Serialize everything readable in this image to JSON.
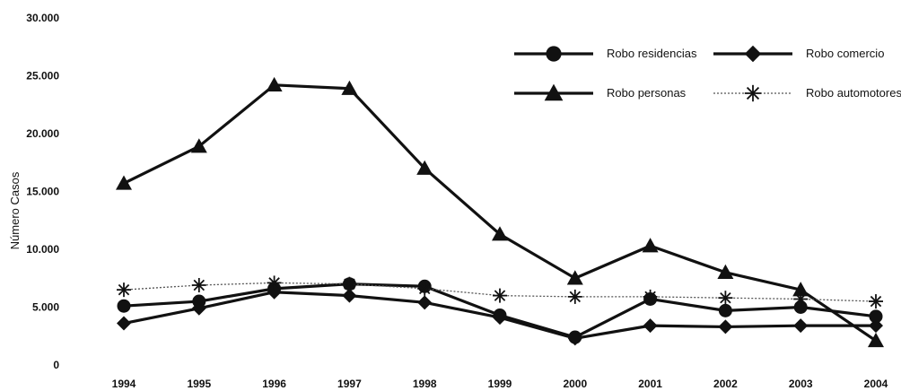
{
  "chart_data": {
    "type": "line",
    "title": "",
    "xlabel": "",
    "ylabel": "Número Casos",
    "ylim": [
      0,
      30000
    ],
    "y_ticks": [
      0,
      5000,
      10000,
      15000,
      20000,
      25000,
      30000
    ],
    "y_tick_labels": [
      "0",
      "5.000",
      "10.000",
      "15.000",
      "20.000",
      "25.000",
      "30.000"
    ],
    "categories": [
      "1994",
      "1995",
      "1996",
      "1997",
      "1998",
      "1999",
      "2000",
      "2001",
      "2002",
      "2003",
      "2004"
    ],
    "grid": false,
    "legend_position": "top-right",
    "series": [
      {
        "name": "Robo residencias",
        "marker": "circle",
        "line": "solid-thick",
        "color": "#111111",
        "values": [
          5100,
          5500,
          6600,
          7000,
          6800,
          4300,
          2400,
          5700,
          4700,
          5000,
          4200
        ]
      },
      {
        "name": "Robo comercio",
        "marker": "diamond",
        "line": "solid-thick",
        "color": "#111111",
        "values": [
          3600,
          4900,
          6300,
          6000,
          5400,
          4100,
          2300,
          3400,
          3300,
          3400,
          3400
        ]
      },
      {
        "name": "Robo personas",
        "marker": "triangle",
        "line": "solid-thick",
        "color": "#111111",
        "values": [
          15700,
          18900,
          24200,
          23900,
          17000,
          11300,
          7500,
          10300,
          8000,
          6500,
          2100
        ]
      },
      {
        "name": "Robo automotores",
        "marker": "asterisk",
        "line": "dotted-thin",
        "color": "#444444",
        "values": [
          6500,
          6900,
          7100,
          7000,
          6600,
          6000,
          5900,
          5900,
          5800,
          5700,
          5500
        ]
      }
    ]
  }
}
